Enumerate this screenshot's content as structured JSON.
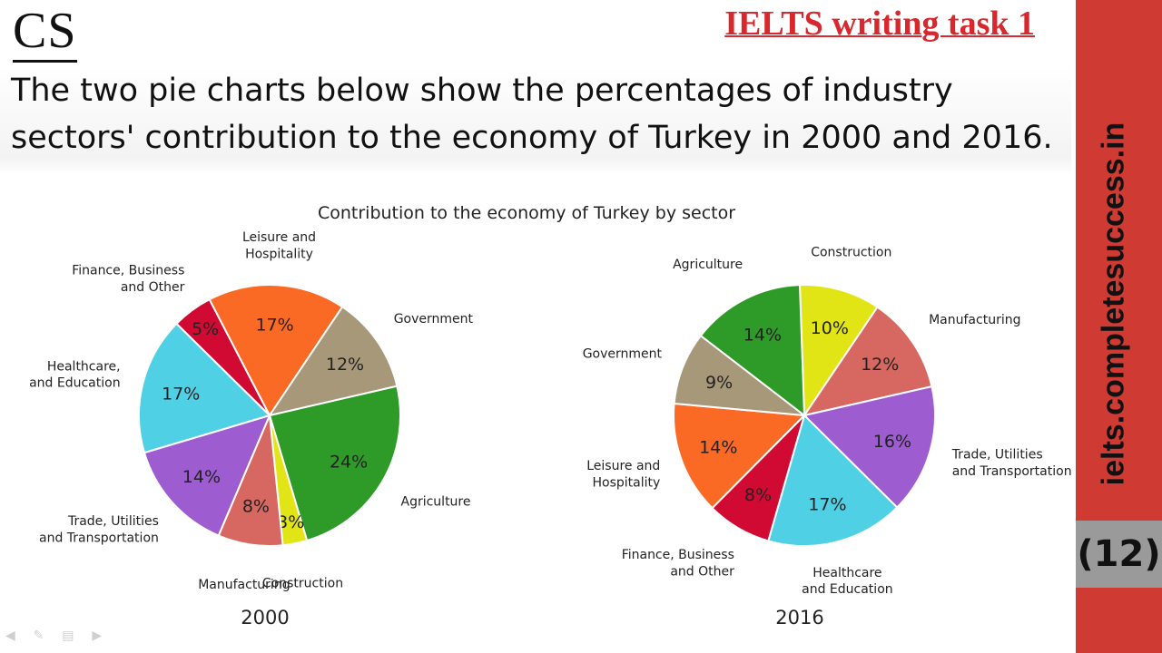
{
  "header": {
    "logo": "CS",
    "task_title": "IELTS writing task 1",
    "question": "The two pie charts below show the percentages of industry sectors' contribution to the economy of Turkey in 2000 and 2016."
  },
  "sidebar": {
    "url": "ielts.completesuccess.in",
    "page_number": "(12)",
    "color": "#cf3a33"
  },
  "chart_data": [
    {
      "type": "pie",
      "title": "Contribution to the economy of Turkey by sector",
      "caption": "2000",
      "slices": [
        {
          "label": "Agriculture",
          "value": 24,
          "color": "#2e9a28"
        },
        {
          "label": "Construction",
          "value": 3,
          "color": "#e2e515"
        },
        {
          "label": "Manufacturing",
          "value": 8,
          "color": "#d66761"
        },
        {
          "label": "Trade, Utilities\nand Transportation",
          "value": 14,
          "color": "#9d5dd1"
        },
        {
          "label": "Healthcare,\nand Education",
          "value": 17,
          "color": "#4fd0e4"
        },
        {
          "label": "Finance, Business\nand Other",
          "value": 5,
          "color": "#d10a33"
        },
        {
          "label": "Leisure and\nHospitality",
          "value": 17,
          "color": "#fb6a25"
        },
        {
          "label": "Government",
          "value": 12,
          "color": "#a8987a"
        }
      ]
    },
    {
      "type": "pie",
      "title": "Contribution to the economy of Turkey by sector",
      "caption": "2016",
      "slices": [
        {
          "label": "Construction",
          "value": 10,
          "color": "#e2e515"
        },
        {
          "label": "Manufacturing",
          "value": 12,
          "color": "#d66761"
        },
        {
          "label": "Trade, Utilities\nand Transportation",
          "value": 16,
          "color": "#9d5dd1"
        },
        {
          "label": "Healthcare\nand Education",
          "value": 17,
          "color": "#4fd0e4"
        },
        {
          "label": "Finance, Business\nand Other",
          "value": 8,
          "color": "#d10a33"
        },
        {
          "label": "Leisure and\nHospitality",
          "value": 14,
          "color": "#fb6a25"
        },
        {
          "label": "Government",
          "value": 9,
          "color": "#a8987a"
        },
        {
          "label": "Agriculture",
          "value": 14,
          "color": "#2e9a28"
        }
      ]
    }
  ]
}
